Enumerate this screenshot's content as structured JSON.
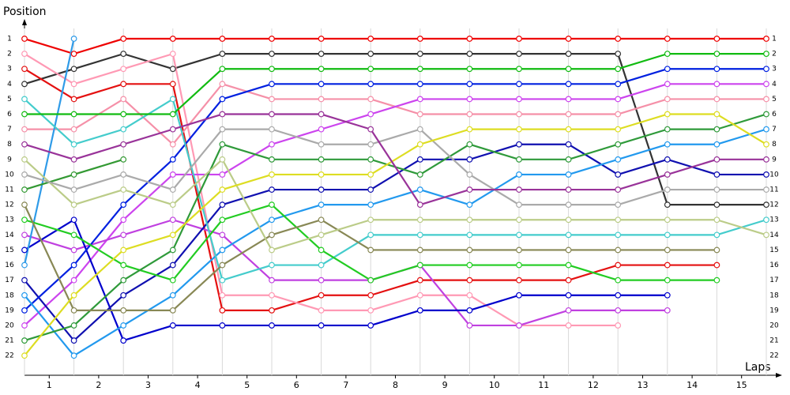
{
  "chart_data": {
    "type": "line",
    "title": "Position",
    "x_label": "Laps",
    "x": [
      0,
      1,
      2,
      3,
      4,
      5,
      6,
      7,
      8,
      9,
      10,
      11,
      12,
      13,
      14,
      15
    ],
    "xlim": [
      0,
      15
    ],
    "xticks": [
      {
        "value": 0.5,
        "label": "1"
      },
      {
        "value": 1.5,
        "label": "2"
      },
      {
        "value": 2.5,
        "label": "3"
      },
      {
        "value": 3.5,
        "label": "4"
      },
      {
        "value": 4.5,
        "label": "5"
      },
      {
        "value": 5.5,
        "label": "6"
      },
      {
        "value": 6.5,
        "label": "7"
      },
      {
        "value": 7.5,
        "label": "8"
      },
      {
        "value": 8.5,
        "label": "9"
      },
      {
        "value": 9.5,
        "label": "10"
      },
      {
        "value": 10.5,
        "label": "11"
      },
      {
        "value": 11.5,
        "label": "12"
      },
      {
        "value": 12.5,
        "label": "13"
      },
      {
        "value": 13.5,
        "label": "14"
      },
      {
        "value": 14.5,
        "label": "15"
      }
    ],
    "ylim": [
      23.3,
      -0.1
    ],
    "yticks": [
      1,
      2,
      3,
      4,
      5,
      6,
      7,
      8,
      9,
      10,
      11,
      12,
      13,
      14,
      15,
      16,
      17,
      18,
      19,
      20,
      21,
      22
    ],
    "grid": true,
    "series": [
      {
        "color": "#ee0000",
        "values": [
          1,
          2,
          1,
          1,
          1,
          1,
          1,
          1,
          1,
          1,
          1,
          1,
          1,
          1,
          1,
          1
        ]
      },
      {
        "color": "#333333",
        "values": [
          4,
          3,
          2,
          3,
          2,
          2,
          2,
          2,
          2,
          2,
          2,
          2,
          2,
          12,
          12,
          12
        ]
      },
      {
        "color": "#e41010",
        "values": [
          3,
          5,
          4,
          4,
          19,
          19,
          18,
          18,
          17,
          17,
          17,
          17,
          16,
          16,
          16,
          null
        ]
      },
      {
        "color": "#ff99b4",
        "values": [
          2,
          4,
          3,
          2,
          18,
          18,
          19,
          19,
          18,
          18,
          20,
          20,
          20,
          null,
          null,
          null
        ]
      },
      {
        "color": "#f590a8",
        "values": [
          7,
          7,
          5,
          8,
          4,
          5,
          5,
          5,
          6,
          6,
          6,
          6,
          6,
          5,
          5,
          5
        ]
      },
      {
        "color": "#cc44ee",
        "values": [
          20,
          17,
          13,
          10,
          10,
          8,
          7,
          6,
          5,
          5,
          5,
          5,
          5,
          4,
          4,
          4
        ]
      },
      {
        "color": "#c040e0",
        "values": [
          14,
          15,
          14,
          13,
          14,
          17,
          17,
          17,
          16,
          20,
          20,
          19,
          19,
          19,
          null,
          null
        ]
      },
      {
        "color": "#0000cc",
        "values": [
          15,
          13,
          21,
          20,
          20,
          20,
          20,
          20,
          19,
          19,
          18,
          18,
          18,
          18,
          null,
          null
        ]
      },
      {
        "color": "#1010b0",
        "values": [
          17,
          21,
          18,
          16,
          12,
          11,
          11,
          11,
          9,
          9,
          8,
          8,
          10,
          9,
          10,
          10
        ]
      },
      {
        "color": "#0020e0",
        "values": [
          19,
          16,
          12,
          9,
          5,
          4,
          4,
          4,
          4,
          4,
          4,
          4,
          4,
          3,
          3,
          3
        ]
      },
      {
        "color": "#2f9be8",
        "values": [
          16,
          1,
          null,
          null,
          null,
          null,
          null,
          null,
          null,
          null,
          null,
          null,
          null,
          null,
          null,
          null
        ]
      },
      {
        "color": "#2299ee",
        "values": [
          18,
          22,
          20,
          18,
          15,
          13,
          12,
          12,
          11,
          12,
          10,
          10,
          9,
          8,
          8,
          7
        ]
      },
      {
        "color": "#44cccc",
        "values": [
          5,
          8,
          7,
          5,
          17,
          16,
          16,
          14,
          14,
          14,
          14,
          14,
          14,
          14,
          14,
          13
        ]
      },
      {
        "color": "#11bb11",
        "values": [
          6,
          6,
          6,
          6,
          3,
          3,
          3,
          3,
          3,
          3,
          3,
          3,
          3,
          2,
          2,
          2
        ]
      },
      {
        "color": "#22cc22",
        "values": [
          13,
          14,
          16,
          17,
          13,
          12,
          15,
          17,
          16,
          16,
          16,
          16,
          17,
          17,
          17,
          null
        ]
      },
      {
        "color": "#339933",
        "values": [
          11,
          10,
          9,
          null,
          null,
          null,
          null,
          null,
          null,
          null,
          null,
          null,
          null,
          null,
          null,
          null
        ]
      },
      {
        "color": "#2f9a3a",
        "values": [
          21,
          20,
          17,
          15,
          8,
          9,
          9,
          9,
          10,
          8,
          9,
          9,
          8,
          7,
          7,
          6
        ]
      },
      {
        "color": "#888855",
        "values": [
          12,
          19,
          19,
          19,
          16,
          14,
          13,
          15,
          15,
          15,
          15,
          15,
          15,
          15,
          15,
          null
        ]
      },
      {
        "color": "#bbcc88",
        "values": [
          9,
          12,
          11,
          12,
          9,
          15,
          14,
          13,
          13,
          13,
          13,
          13,
          13,
          13,
          13,
          14
        ]
      },
      {
        "color": "#aaaaaa",
        "values": [
          10,
          11,
          10,
          11,
          7,
          7,
          8,
          8,
          7,
          10,
          12,
          12,
          12,
          11,
          11,
          11
        ]
      },
      {
        "color": "#dddd22",
        "values": [
          22,
          18,
          15,
          14,
          11,
          10,
          10,
          10,
          8,
          7,
          7,
          7,
          7,
          6,
          6,
          8
        ]
      },
      {
        "color": "#993399",
        "values": [
          8,
          9,
          8,
          7,
          6,
          6,
          6,
          7,
          12,
          11,
          11,
          11,
          11,
          10,
          9,
          9
        ]
      }
    ]
  }
}
